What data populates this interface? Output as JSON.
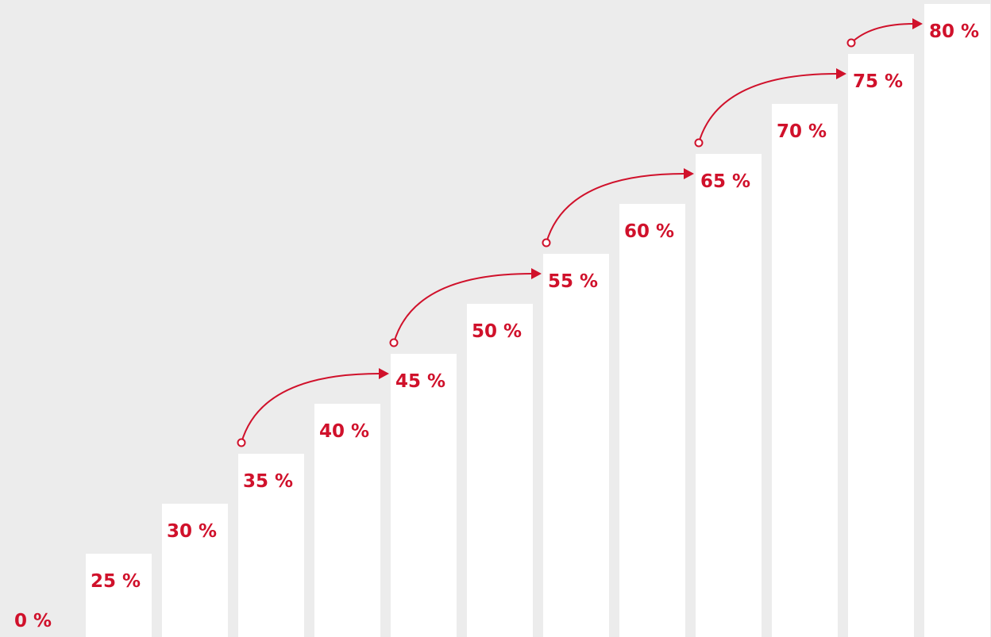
{
  "chart_data": {
    "type": "bar",
    "categories": [
      "0 %",
      "25 %",
      "30 %",
      "35 %",
      "40 %",
      "45 %",
      "50 %",
      "55 %",
      "60 %",
      "65 %",
      "70 %",
      "75 %",
      "80 %"
    ],
    "values": [
      0,
      25,
      30,
      35,
      40,
      45,
      50,
      55,
      60,
      65,
      70,
      75,
      80
    ],
    "title": "",
    "xlabel": "",
    "ylabel": "",
    "ylim": [
      0,
      80
    ],
    "grid": false,
    "annotations": {
      "arrows": [
        {
          "from": "35 %",
          "to": "45 %"
        },
        {
          "from": "45 %",
          "to": "55 %"
        },
        {
          "from": "55 %",
          "to": "65 %"
        },
        {
          "from": "65 %",
          "to": "75 %"
        },
        {
          "from": "75 %",
          "to": "80 %"
        }
      ]
    },
    "colors": {
      "background": "#ececec",
      "bar": "#ffffff",
      "accent": "#d0112b"
    }
  }
}
